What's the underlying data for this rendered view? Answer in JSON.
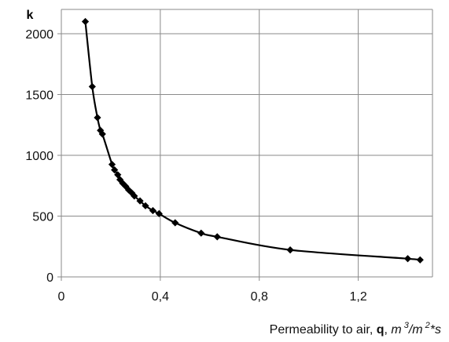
{
  "chart_data": {
    "type": "line",
    "ylabel": "k",
    "xlabel_text": "Permeability to air,",
    "xlabel_symbol": "q",
    "xlabel_separator": ",",
    "xlabel_unit_m1": "m",
    "xlabel_unit_exp1": "3",
    "xlabel_unit_slash": "/m",
    "xlabel_unit_exp2": "2",
    "xlabel_unit_tail": "*s",
    "xlim": [
      0,
      1.5
    ],
    "ylim": [
      0,
      2200
    ],
    "x_ticks": [
      0,
      0.4,
      0.8,
      1.2
    ],
    "x_tick_labels": [
      "0",
      "0,4",
      "0,8",
      "1,2"
    ],
    "y_ticks": [
      0,
      500,
      1000,
      1500,
      2000
    ],
    "y_tick_labels": [
      "0",
      "500",
      "1000",
      "1500",
      "2000"
    ],
    "grid": true,
    "series": [
      {
        "points": [
          [
            0.097,
            2100
          ],
          [
            0.125,
            1565
          ],
          [
            0.146,
            1310
          ],
          [
            0.158,
            1205
          ],
          [
            0.166,
            1175
          ],
          [
            0.205,
            925
          ],
          [
            0.215,
            880
          ],
          [
            0.228,
            840
          ],
          [
            0.237,
            800
          ],
          [
            0.248,
            770
          ],
          [
            0.26,
            745
          ],
          [
            0.272,
            715
          ],
          [
            0.285,
            690
          ],
          [
            0.295,
            665
          ],
          [
            0.318,
            625
          ],
          [
            0.34,
            585
          ],
          [
            0.37,
            545
          ],
          [
            0.395,
            520
          ],
          [
            0.46,
            445
          ],
          [
            0.565,
            360
          ],
          [
            0.63,
            330
          ],
          [
            0.925,
            222
          ],
          [
            1.4,
            150
          ],
          [
            1.45,
            140
          ]
        ]
      }
    ]
  }
}
